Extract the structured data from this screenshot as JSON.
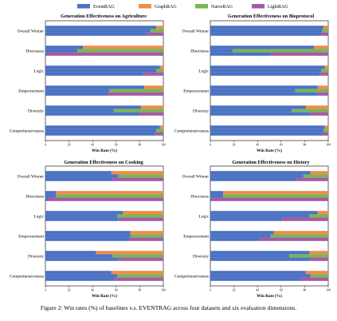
{
  "figure": {
    "caption": "Figure 2: Win rates (%) of baselines v.s. EVENTRAG across four datasets and six evaluation dimensions."
  },
  "legend": [
    {
      "name": "EventRAG",
      "color": "#4c72c4"
    },
    {
      "name": "GraphRAG",
      "color": "#ef8c4a"
    },
    {
      "name": "NaiveRAG",
      "color": "#78b556"
    },
    {
      "name": "LightRAG",
      "color": "#a55aa5"
    }
  ],
  "chart_data": [
    {
      "type": "bar",
      "title": "Generation Effectiveness on Agriculture",
      "xlabel": "Win Rate (%)",
      "xlim": [
        0,
        100
      ],
      "xticks": [
        "0",
        "20",
        "40",
        "60",
        "80",
        "100"
      ],
      "legend_placement": "top",
      "categories": [
        "Overall Winner",
        "Directness",
        "Logic",
        "Empowerment",
        "Diversity",
        "Comprehensiveness"
      ],
      "comparisons": [
        {
          "baseline": "GraphRAG",
          "eventrag_win": [
            94,
            32,
            97,
            84,
            81,
            97
          ]
        },
        {
          "baseline": "NaiveRAG",
          "eventrag_win": [
            89,
            27,
            94,
            54,
            58,
            94
          ]
        },
        {
          "baseline": "LightRAG",
          "eventrag_win": [
            86,
            1,
            83,
            53,
            80,
            93
          ]
        }
      ]
    },
    {
      "type": "bar",
      "title": "Generation Effectiveness on Bioprotocol",
      "xlabel": "Win Rate (%)",
      "xlim": [
        0,
        100
      ],
      "xticks": [
        "0",
        "20",
        "40",
        "60",
        "80",
        "100"
      ],
      "legend_placement": "top",
      "categories": [
        "Overall Winner",
        "Directness",
        "Logic",
        "Empowerment",
        "Diversity",
        "Comprehensiveness"
      ],
      "comparisons": [
        {
          "baseline": "GraphRAG",
          "eventrag_win": [
            96,
            88,
            97,
            91,
            81,
            97
          ]
        },
        {
          "baseline": "NaiveRAG",
          "eventrag_win": [
            95,
            19,
            94,
            72,
            69,
            96
          ]
        },
        {
          "baseline": "LightRAG",
          "eventrag_win": [
            94,
            51,
            93,
            91,
            85,
            95
          ]
        }
      ]
    },
    {
      "type": "bar",
      "title": "Generation Effectiveness on Cooking",
      "xlabel": "Win Rate (%)",
      "xlim": [
        0,
        100
      ],
      "xticks": [
        "0",
        "20",
        "40",
        "60",
        "80",
        "100"
      ],
      "legend_placement": "top",
      "categories": [
        "Overall Winner",
        "Directness",
        "Logic",
        "Empowerment",
        "Diversity",
        "Comprehensiveness"
      ],
      "comparisons": [
        {
          "baseline": "GraphRAG",
          "eventrag_win": [
            56,
            9,
            66,
            72,
            43,
            56
          ]
        },
        {
          "baseline": "NaiveRAG",
          "eventrag_win": [
            62,
            9,
            61,
            72,
            57,
            61
          ]
        },
        {
          "baseline": "LightRAG",
          "eventrag_win": [
            57,
            2,
            62,
            71,
            62,
            59
          ]
        }
      ]
    },
    {
      "type": "bar",
      "title": "Generation Effectiveness on History",
      "xlabel": "Win Rate (%)",
      "xlim": [
        0,
        100
      ],
      "xticks": [
        "0",
        "20",
        "40",
        "60",
        "80",
        "100"
      ],
      "legend_placement": "top",
      "categories": [
        "Overall Winner",
        "Directness",
        "Logic",
        "Empowerment",
        "Diversity",
        "Comprehensiveness"
      ],
      "comparisons": [
        {
          "baseline": "GraphRAG",
          "eventrag_win": [
            85,
            11,
            91,
            54,
            84,
            81
          ]
        },
        {
          "baseline": "NaiveRAG",
          "eventrag_win": [
            79,
            11,
            84,
            51,
            67,
            85
          ]
        },
        {
          "baseline": "LightRAG",
          "eventrag_win": [
            73,
            1,
            61,
            42,
            85,
            77
          ]
        }
      ]
    }
  ]
}
